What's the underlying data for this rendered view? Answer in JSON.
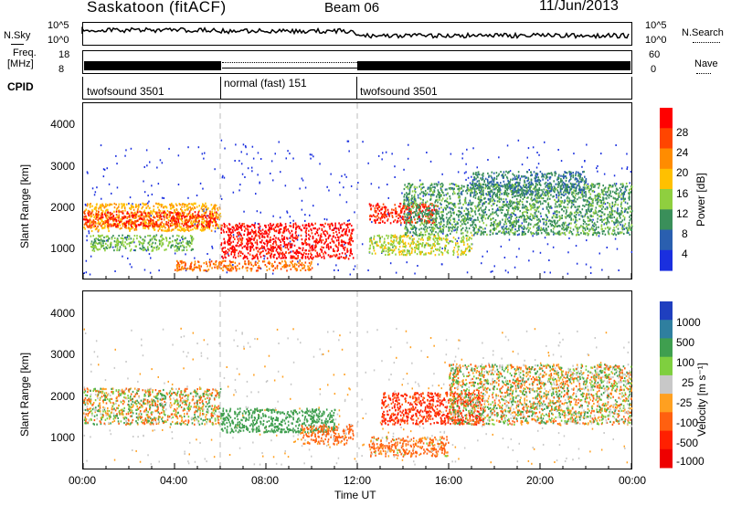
{
  "header": {
    "station": "Saskatoon (fitACF)",
    "beam": "Beam 06",
    "date": "11/Jun/2013"
  },
  "noise_panel": {
    "left_label": "N.Sky",
    "right_label": "N.Search",
    "left_ticks": [
      "10^5",
      "10^0"
    ],
    "right_ticks": [
      "10^5",
      "10^0"
    ]
  },
  "freq_panel": {
    "left_label_1": "Freq.",
    "left_label_2": "[MHz]",
    "left_ticks": [
      "18",
      "8"
    ],
    "right_label": "Nave",
    "right_ticks": [
      "60",
      "0"
    ]
  },
  "cpid_panel": {
    "label": "CPID",
    "segments": [
      {
        "name": "twofsound 3501",
        "start": 0,
        "end": 6
      },
      {
        "name": "normal (fast) 151",
        "start": 6,
        "end": 12
      },
      {
        "name": "twofsound 3501",
        "start": 12,
        "end": 24
      }
    ]
  },
  "power_panel": {
    "ylabel": "Slant Range [km]",
    "yticks": [
      "4000",
      "3000",
      "2000",
      "1000"
    ],
    "colorbar_title": "Power [dB]",
    "colorbar_ticks": [
      "28",
      "24",
      "20",
      "16",
      "12",
      "8",
      "4"
    ],
    "colorbar_colors": [
      "#ff0000",
      "#ff4500",
      "#ff8c00",
      "#ffc000",
      "#8fcf3f",
      "#3a8f5a",
      "#2a5faf",
      "#1a2fdf"
    ]
  },
  "velocity_panel": {
    "ylabel": "Slant Range [km]",
    "yticks": [
      "4000",
      "3000",
      "2000",
      "1000"
    ],
    "colorbar_title": "Velocity [m s⁻¹]",
    "colorbar_ticks": [
      "1000",
      "500",
      "100",
      "25",
      "-25",
      "-100",
      "-500",
      "-1000"
    ],
    "colorbar_colors": [
      "#1f3fbf",
      "#2f7f9f",
      "#3f9f4f",
      "#7fcf3f",
      "#c8c8c8",
      "#ffa020",
      "#ff6010",
      "#ff2000",
      "#ee0000"
    ]
  },
  "x_axis": {
    "label": "Time UT",
    "ticks": [
      "00:00",
      "04:00",
      "08:00",
      "12:00",
      "16:00",
      "20:00",
      "00:00"
    ]
  },
  "chart_data": {
    "type": "heatmap",
    "title": "Saskatoon (fitACF) Beam 06 11/Jun/2013",
    "xlabel": "Time UT",
    "ylabel": "Slant Range [km]",
    "xlim": [
      0,
      24
    ],
    "ylim": [
      180,
      4600
    ],
    "x_unit": "hours UT",
    "panels": [
      {
        "name": "Power",
        "unit": "dB",
        "scale": [
          0,
          30
        ],
        "scatter_regions": [
          {
            "t0": 0.0,
            "t1": 6.0,
            "r0": 1400,
            "r1": 2100,
            "value": 18
          },
          {
            "t0": 0.0,
            "t1": 5.8,
            "r0": 1500,
            "r1": 1900,
            "value": 26
          },
          {
            "t0": 0.3,
            "t1": 4.8,
            "r0": 900,
            "r1": 1300,
            "value": 12
          },
          {
            "t0": 6.0,
            "t1": 11.8,
            "r0": 700,
            "r1": 1600,
            "value": 28
          },
          {
            "t0": 4.0,
            "t1": 10.0,
            "r0": 400,
            "r1": 650,
            "value": 22
          },
          {
            "t0": 12.5,
            "t1": 15.5,
            "r0": 1600,
            "r1": 2100,
            "value": 26
          },
          {
            "t0": 12.5,
            "t1": 17.0,
            "r0": 800,
            "r1": 1300,
            "value": 14
          },
          {
            "t0": 14.0,
            "t1": 24.0,
            "r0": 1300,
            "r1": 2600,
            "value": 10
          },
          {
            "t0": 17.0,
            "t1": 22.0,
            "r0": 2300,
            "r1": 2900,
            "value": 8
          }
        ]
      },
      {
        "name": "Velocity",
        "unit": "m s-1",
        "scale": [
          -1000,
          1000
        ],
        "scatter_regions": [
          {
            "t0": 0.0,
            "t1": 6.0,
            "r0": 1300,
            "r1": 2200,
            "value": 0
          },
          {
            "t0": 6.0,
            "t1": 11.0,
            "r0": 1100,
            "r1": 1700,
            "value": 300
          },
          {
            "t0": 9.5,
            "t1": 11.8,
            "r0": 800,
            "r1": 1300,
            "value": -200
          },
          {
            "t0": 13.0,
            "t1": 17.5,
            "r0": 1300,
            "r1": 2100,
            "value": -600
          },
          {
            "t0": 12.5,
            "t1": 16.0,
            "r0": 500,
            "r1": 1000,
            "value": -150
          },
          {
            "t0": 16.0,
            "t1": 24.0,
            "r0": 1300,
            "r1": 2800,
            "value": 0
          }
        ]
      }
    ]
  }
}
